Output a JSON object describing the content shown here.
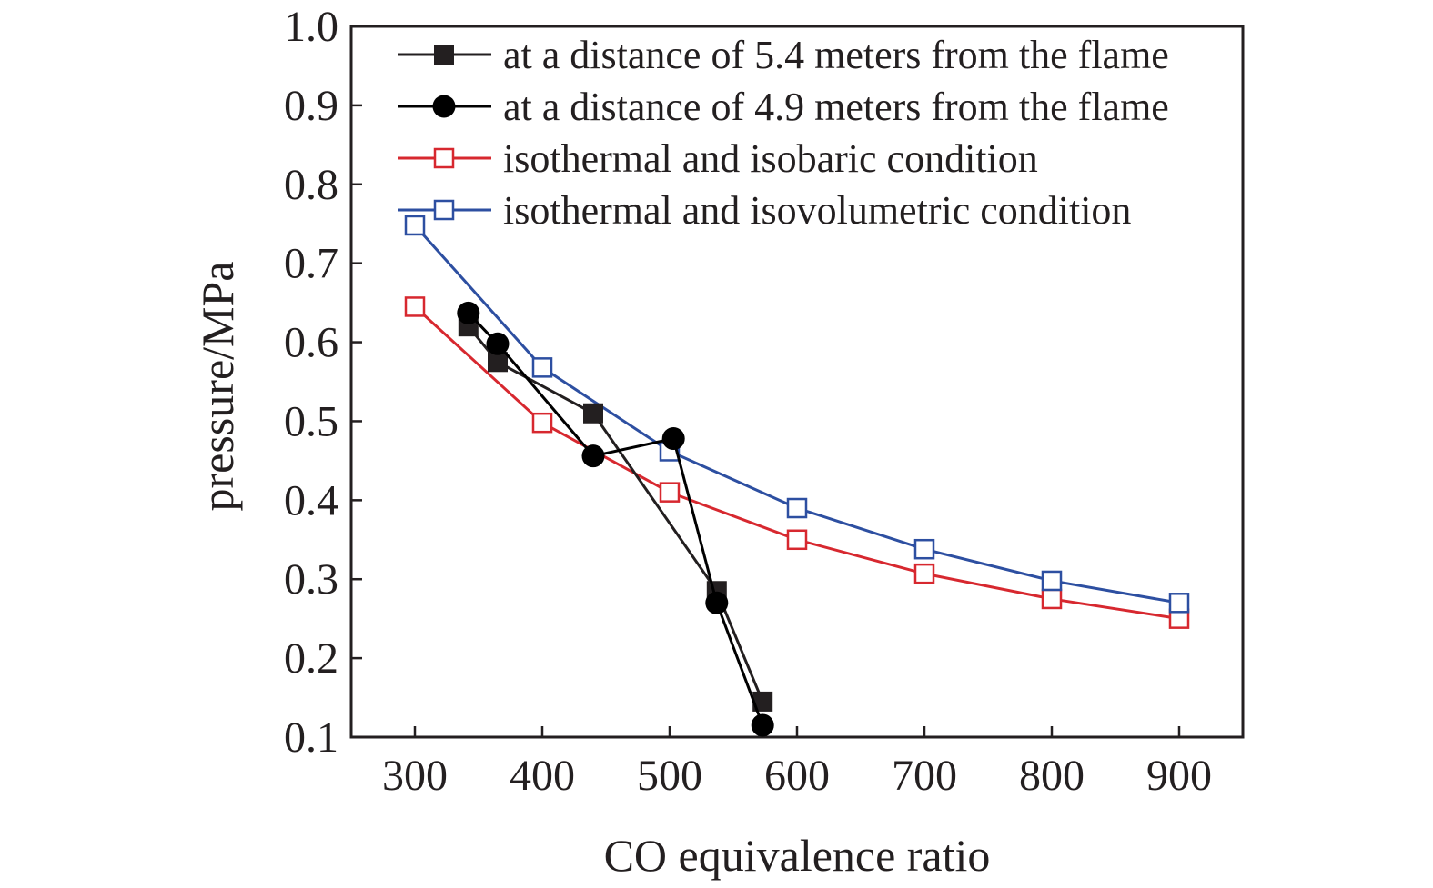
{
  "chart_data": {
    "type": "line",
    "title": "",
    "xlabel": "CO equivalence ratio",
    "ylabel": "pressure/MPa",
    "xlim": [
      250,
      950
    ],
    "ylim": [
      0.1,
      1.0
    ],
    "xticks": [
      300,
      400,
      500,
      600,
      700,
      800,
      900
    ],
    "yticks": [
      0.1,
      0.2,
      0.3,
      0.4,
      0.5,
      0.6,
      0.7,
      0.8,
      0.9,
      1.0
    ],
    "xtick_labels": [
      "300",
      "400",
      "500",
      "600",
      "700",
      "800",
      "900"
    ],
    "ytick_labels": [
      "0.1",
      "0.2",
      "0.3",
      "0.4",
      "0.5",
      "0.6",
      "0.7",
      "0.8",
      "0.9",
      "1.0"
    ],
    "grid": false,
    "legend_position": "top-right",
    "series": [
      {
        "name": "at a distance of 5.4 meters from the flame",
        "color": "#231f20",
        "marker": "filled-square",
        "x": [
          342,
          365,
          440,
          537,
          573
        ],
        "y": [
          0.62,
          0.575,
          0.51,
          0.285,
          0.145
        ]
      },
      {
        "name": "at a distance of 4.9 meters from the flame",
        "color": "#000000",
        "marker": "filled-circle",
        "x": [
          342,
          365,
          440,
          503,
          537,
          573
        ],
        "y": [
          0.637,
          0.598,
          0.456,
          0.478,
          0.27,
          0.115
        ]
      },
      {
        "name": "isothermal and isobaric condition",
        "color": "#d7282f",
        "marker": "open-square",
        "x": [
          300,
          400,
          500,
          600,
          700,
          800,
          900
        ],
        "y": [
          0.645,
          0.498,
          0.41,
          0.35,
          0.307,
          0.275,
          0.25
        ]
      },
      {
        "name": "isothermal and isovolumetric condition",
        "color": "#2d4fa1",
        "marker": "open-square",
        "x": [
          300,
          400,
          500,
          600,
          700,
          800,
          900
        ],
        "y": [
          0.748,
          0.568,
          0.462,
          0.39,
          0.338,
          0.298,
          0.27
        ]
      }
    ]
  }
}
